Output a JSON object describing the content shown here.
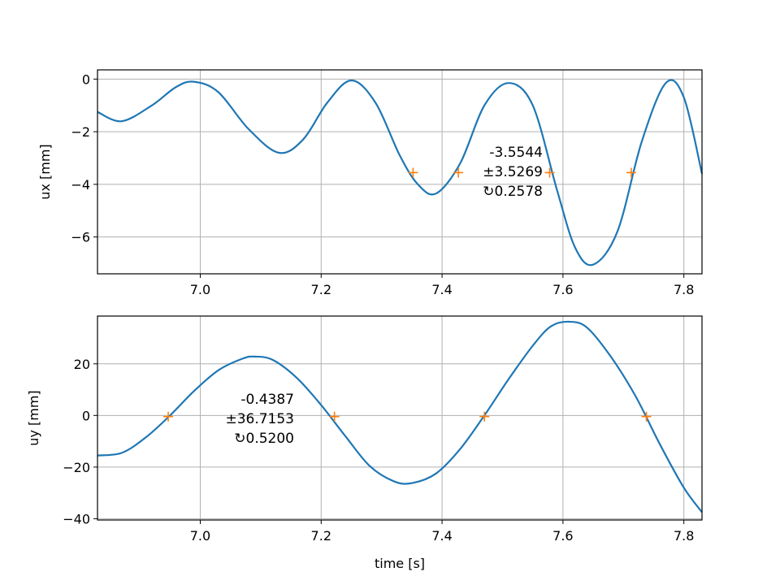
{
  "chart_data": [
    {
      "type": "line",
      "xlabel": "",
      "ylabel": "ux [mm]",
      "xlim": [
        6.83,
        7.83
      ],
      "ylim": [
        -7.4,
        0.35
      ],
      "xticks": [
        7.0,
        7.2,
        7.4,
        7.6,
        7.8
      ],
      "xtick_labels": [
        "7.0",
        "7.2",
        "7.4",
        "7.6",
        "7.8"
      ],
      "yticks": [
        0,
        -2,
        -4,
        -6
      ],
      "ytick_labels": [
        "0",
        "−2",
        "−4",
        "−6"
      ],
      "grid": true,
      "series": [
        {
          "x": [
            6.83,
            6.87,
            6.92,
            6.96,
            6.99,
            7.03,
            7.08,
            7.13,
            7.17,
            7.21,
            7.25,
            7.29,
            7.33,
            7.36,
            7.39,
            7.43,
            7.47,
            7.51,
            7.55,
            7.59,
            7.62,
            7.65,
            7.69,
            7.73,
            7.77,
            7.8,
            7.83
          ],
          "values": [
            -1.25,
            -1.6,
            -1.0,
            -0.3,
            -0.1,
            -0.5,
            -1.9,
            -2.8,
            -2.3,
            -0.9,
            -0.05,
            -0.9,
            -2.9,
            -4.0,
            -4.35,
            -3.2,
            -1.0,
            -0.15,
            -1.0,
            -4.2,
            -6.4,
            -7.05,
            -5.8,
            -2.4,
            -0.15,
            -0.7,
            -3.6
          ]
        }
      ],
      "markers": {
        "x": [
          7.352,
          7.427,
          7.578,
          7.713
        ],
        "values": [
          -3.5544,
          -3.5544,
          -3.5544,
          -3.5544
        ]
      },
      "annotation": [
        "-3.5544",
        "±3.5269",
        "↻0.2578"
      ]
    },
    {
      "type": "line",
      "xlabel": "time [s]",
      "ylabel": "uy [mm]",
      "xlim": [
        6.83,
        7.83
      ],
      "ylim": [
        -40.5,
        38.5
      ],
      "xticks": [
        7.0,
        7.2,
        7.4,
        7.6,
        7.8
      ],
      "xtick_labels": [
        "7.0",
        "7.2",
        "7.4",
        "7.6",
        "7.8"
      ],
      "yticks": [
        20,
        0,
        -20,
        -40
      ],
      "ytick_labels": [
        "20",
        "0",
        "−20",
        "−40"
      ],
      "grid": true,
      "series": [
        {
          "x": [
            6.83,
            6.87,
            6.91,
            6.95,
            6.99,
            7.03,
            7.07,
            7.09,
            7.12,
            7.16,
            7.2,
            7.24,
            7.28,
            7.32,
            7.35,
            7.39,
            7.43,
            7.47,
            7.51,
            7.55,
            7.58,
            7.61,
            7.64,
            7.68,
            7.72,
            7.76,
            7.8,
            7.83
          ],
          "values": [
            -15.5,
            -14.5,
            -8.5,
            0,
            9.5,
            17.5,
            22.0,
            22.8,
            21.5,
            14.5,
            4.0,
            -8.0,
            -19.5,
            -25.5,
            -26.2,
            -22.5,
            -13.0,
            0,
            14.0,
            27.0,
            34.5,
            36.3,
            34.0,
            22.5,
            7.5,
            -11.0,
            -28.0,
            -37.5
          ]
        }
      ],
      "markers": {
        "x": [
          6.947,
          7.222,
          7.47,
          7.738
        ],
        "values": [
          -0.4387,
          -0.4387,
          -0.4387,
          -0.4387
        ]
      },
      "annotation": [
        "-0.4387",
        "±36.7153",
        "↻0.5200"
      ]
    }
  ]
}
